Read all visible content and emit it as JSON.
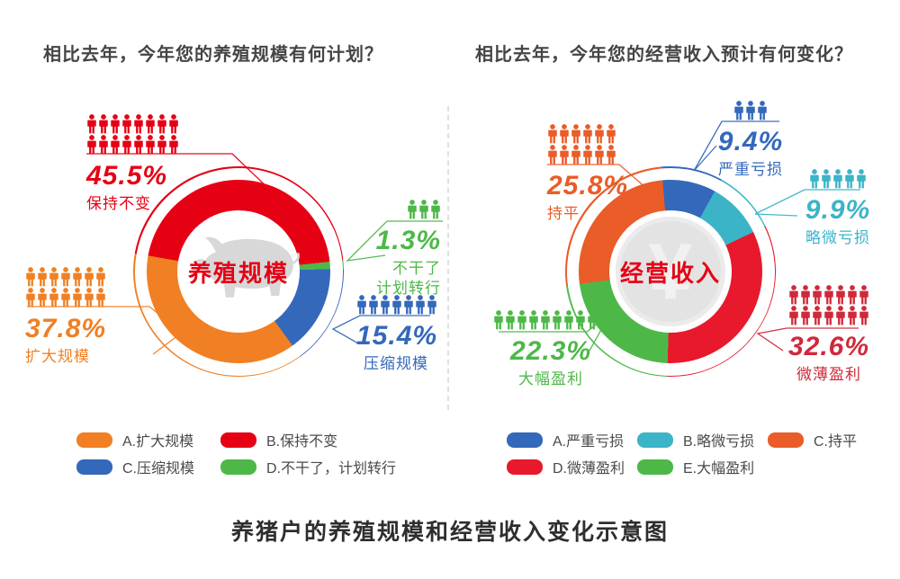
{
  "caption": "养猪户的养殖规模和经营收入变化示意图",
  "divider_color": "#e0e0e0",
  "chart_data": [
    {
      "type": "donut",
      "title": "相比去年，今年您的养殖规模有何计划？",
      "center_label": "养殖规模",
      "center_label_color": "#e60014",
      "center_watermark": "pig-icon",
      "start_angle": 280,
      "unit": "%",
      "legend_position": "bottom",
      "segments": [
        {
          "label": "保持不变",
          "value": 45.5,
          "display": "45.5%",
          "color": "#e60014",
          "icon_rows": [
            8,
            8
          ]
        },
        {
          "label": "不干了",
          "label2": "计划转行",
          "value": 1.3,
          "display": "1.3%",
          "color": "#4db848",
          "icon_rows": [
            3
          ]
        },
        {
          "label": "压缩规模",
          "value": 15.4,
          "display": "15.4%",
          "color": "#3468bb",
          "icon_rows": [
            7
          ]
        },
        {
          "label": "扩大规模",
          "value": 37.8,
          "display": "37.8%",
          "color": "#f08023",
          "icon_rows": [
            7,
            7
          ]
        }
      ],
      "legend": [
        {
          "label": "A.扩大规模",
          "color": "#f08023"
        },
        {
          "label": "B.保持不变",
          "color": "#e60014"
        },
        {
          "label": "C.压缩规模",
          "color": "#3468bb"
        },
        {
          "label": "D.不干了，计划转行",
          "color": "#4db848"
        }
      ]
    },
    {
      "type": "donut",
      "title": "相比去年，今年您的经营收入预计有何变化？",
      "center_label": "经营收入",
      "center_label_color": "#e60014",
      "center_watermark": "yuan-coin-icon",
      "watermark_glyph": "¥",
      "start_angle": -5,
      "unit": "%",
      "legend_position": "bottom",
      "segments": [
        {
          "label": "严重亏损",
          "value": 9.4,
          "display": "9.4%",
          "color": "#3468bb",
          "icon_rows": [
            3
          ]
        },
        {
          "label": "略微亏损",
          "value": 9.9,
          "display": "9.9%",
          "color": "#3cb4c7",
          "icon_rows": [
            5
          ]
        },
        {
          "label": "微薄盈利",
          "value": 32.6,
          "display": "32.6%",
          "color": "#e8192c",
          "label_color": "#d0293a",
          "icon_rows": [
            7,
            7
          ]
        },
        {
          "label": "大幅盈利",
          "value": 22.3,
          "display": "22.3%",
          "color": "#4db848",
          "icon_rows": [
            10
          ]
        },
        {
          "label": "持平",
          "value": 25.8,
          "display": "25.8%",
          "color": "#ea5c28",
          "icon_rows": [
            6,
            6
          ]
        }
      ],
      "legend": [
        {
          "label": "A.严重亏损",
          "color": "#3468bb"
        },
        {
          "label": "B.略微亏损",
          "color": "#3cb4c7"
        },
        {
          "label": "C.持平",
          "color": "#ea5c28"
        },
        {
          "label": "D.微薄盈利",
          "color": "#e8192c"
        },
        {
          "label": "E.大幅盈利",
          "color": "#4db848"
        }
      ]
    }
  ]
}
